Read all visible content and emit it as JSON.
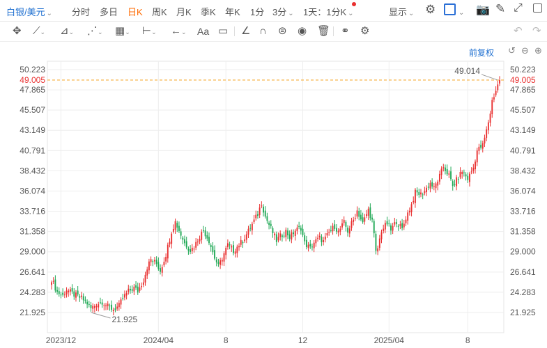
{
  "topbar": {
    "symbol": "白银/美元",
    "periods": [
      "分时",
      "多日",
      "日K",
      "周K",
      "月K",
      "季K",
      "年K",
      "1分",
      "3分"
    ],
    "active_period": "日K",
    "ratio": "1天：1分K",
    "display": "显示"
  },
  "toolbar": {
    "icons": [
      "move-icon",
      "line-icon",
      "polyline-icon",
      "wave-icon",
      "fibonacci-icon",
      "range-icon",
      "arrow-icon",
      "text-icon",
      "comment-icon",
      "angle-icon",
      "arc-icon",
      "cycle-icon",
      "eye-icon",
      "trash-icon",
      "compare-icon",
      "settings-icon",
      "undo-icon",
      "redo-icon"
    ],
    "text_label": "Aa"
  },
  "adjust": {
    "label": "前复权"
  },
  "chart_data": {
    "type": "candlestick",
    "x_tick_labels": [
      "2023/12",
      "2024/04",
      "8",
      "12",
      "2025/04",
      "8"
    ],
    "y_tick_labels": [
      "50.223",
      "47.865",
      "45.507",
      "43.149",
      "40.791",
      "38.432",
      "36.074",
      "33.716",
      "31.358",
      "29.000",
      "26.641",
      "24.283",
      "21.925"
    ],
    "ylim": [
      20.9,
      51.2
    ],
    "current_price": "49.005",
    "high_label": "49.014",
    "low_label": "21.925",
    "colors": {
      "up": "#e93030",
      "down": "#1fa855",
      "current_line": "#f5a623"
    },
    "grid": true,
    "series_path": [
      [
        0,
        25.8
      ],
      [
        3,
        24.3
      ],
      [
        6,
        23.9
      ],
      [
        8,
        24.6
      ],
      [
        12,
        24.0
      ],
      [
        16,
        23.6
      ],
      [
        19,
        23.0
      ],
      [
        21,
        22.4
      ],
      [
        24,
        22.9
      ],
      [
        27,
        23.2
      ],
      [
        30,
        22.6
      ],
      [
        33,
        22.3
      ],
      [
        36,
        22.7
      ],
      [
        38,
        23.6
      ],
      [
        41,
        24.4
      ],
      [
        44,
        24.8
      ],
      [
        46,
        24.4
      ],
      [
        49,
        25.7
      ],
      [
        51,
        27.2
      ],
      [
        53,
        28.1
      ],
      [
        56,
        27.6
      ],
      [
        58,
        26.8
      ],
      [
        61,
        28.7
      ],
      [
        64,
        31.4
      ],
      [
        66,
        32.5
      ],
      [
        69,
        31.0
      ],
      [
        71,
        30.0
      ],
      [
        74,
        29.2
      ],
      [
        76,
        29.6
      ],
      [
        79,
        30.8
      ],
      [
        81,
        31.5
      ],
      [
        84,
        30.3
      ],
      [
        87,
        28.3
      ],
      [
        89,
        27.3
      ],
      [
        92,
        28.8
      ],
      [
        94,
        29.8
      ],
      [
        97,
        29.1
      ],
      [
        99,
        29.6
      ],
      [
        102,
        30.3
      ],
      [
        105,
        31.4
      ],
      [
        107,
        32.2
      ],
      [
        110,
        33.4
      ],
      [
        112,
        34.7
      ],
      [
        114,
        33.1
      ],
      [
        117,
        31.7
      ],
      [
        120,
        30.3
      ],
      [
        122,
        30.8
      ],
      [
        125,
        31.4
      ],
      [
        127,
        30.7
      ],
      [
        130,
        31.5
      ],
      [
        133,
        31.8
      ],
      [
        135,
        30.0
      ],
      [
        138,
        29.4
      ],
      [
        140,
        30.1
      ],
      [
        143,
        30.6
      ],
      [
        145,
        30.2
      ],
      [
        148,
        31.2
      ],
      [
        151,
        32.0
      ],
      [
        153,
        31.3
      ],
      [
        156,
        32.4
      ],
      [
        158,
        31.4
      ],
      [
        161,
        32.7
      ],
      [
        163,
        33.8
      ],
      [
        166,
        32.3
      ],
      [
        169,
        33.9
      ],
      [
        171,
        32.6
      ],
      [
        172,
        30.9
      ],
      [
        173,
        28.9
      ],
      [
        174,
        29.4
      ],
      [
        176,
        31.5
      ],
      [
        179,
        32.3
      ],
      [
        181,
        31.5
      ],
      [
        184,
        32.6
      ],
      [
        187,
        31.6
      ],
      [
        189,
        33.0
      ],
      [
        192,
        34.5
      ],
      [
        194,
        35.9
      ],
      [
        197,
        35.7
      ],
      [
        199,
        36.1
      ],
      [
        202,
        37.0
      ],
      [
        204,
        36.4
      ],
      [
        207,
        37.8
      ],
      [
        209,
        38.9
      ],
      [
        212,
        37.9
      ],
      [
        214,
        36.6
      ],
      [
        217,
        37.7
      ],
      [
        219,
        38.4
      ],
      [
        222,
        37.5
      ],
      [
        225,
        38.8
      ],
      [
        227,
        40.8
      ],
      [
        230,
        41.4
      ],
      [
        232,
        43.1
      ],
      [
        234,
        45.2
      ],
      [
        235,
        46.6
      ],
      [
        237,
        47.8
      ],
      [
        239,
        49.0
      ]
    ]
  }
}
